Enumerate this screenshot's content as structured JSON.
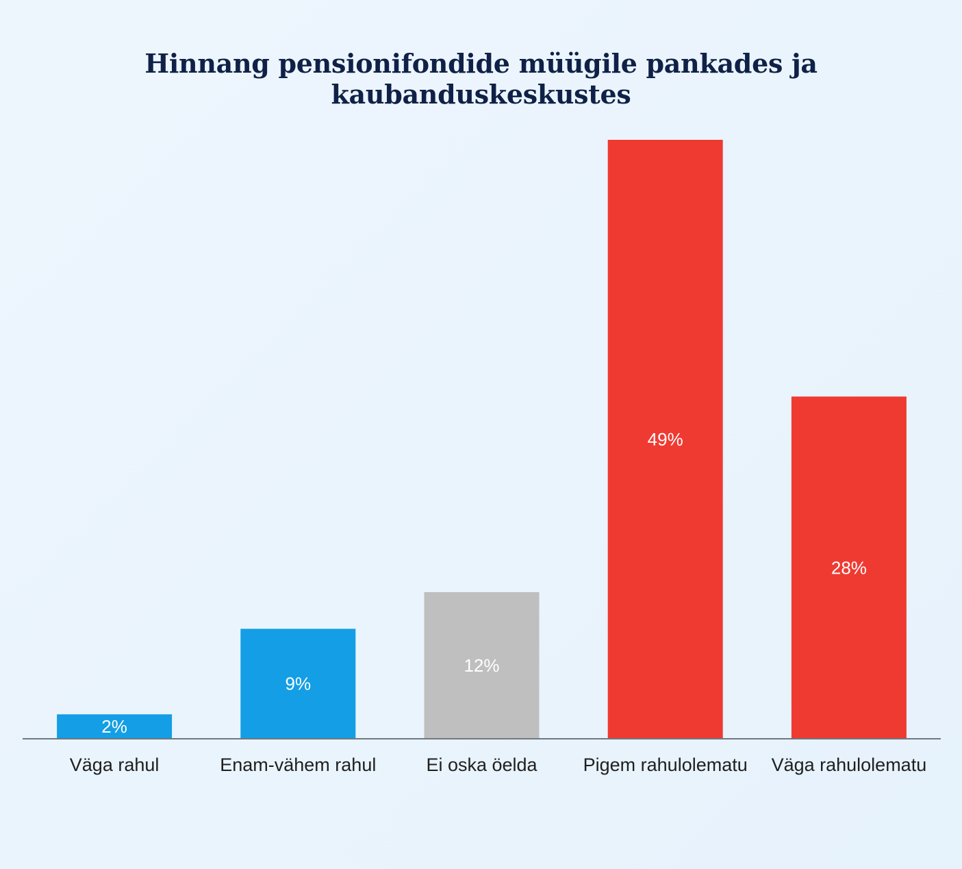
{
  "chart_data": {
    "type": "bar",
    "title": "Hinnang pensionifondide müügile pankades ja kaubanduskeskustes",
    "categories": [
      "Väga rahul",
      "Enam-vähem rahul",
      "Ei oska öelda",
      "Pigem rahulolematu",
      "Väga rahulolematu"
    ],
    "values": [
      2,
      9,
      12,
      49,
      28
    ],
    "data_labels": [
      "2%",
      "9%",
      "12%",
      "49%",
      "28%"
    ],
    "bar_colors": [
      "#149ee5",
      "#149ee5",
      "#bfbfbf",
      "#ef3a32",
      "#ef3a32"
    ],
    "ylim": [
      0,
      49
    ],
    "grid": false,
    "xlabel": "",
    "ylabel": ""
  },
  "colors": {
    "title": "#0f2147",
    "axis": "#6f7780"
  }
}
